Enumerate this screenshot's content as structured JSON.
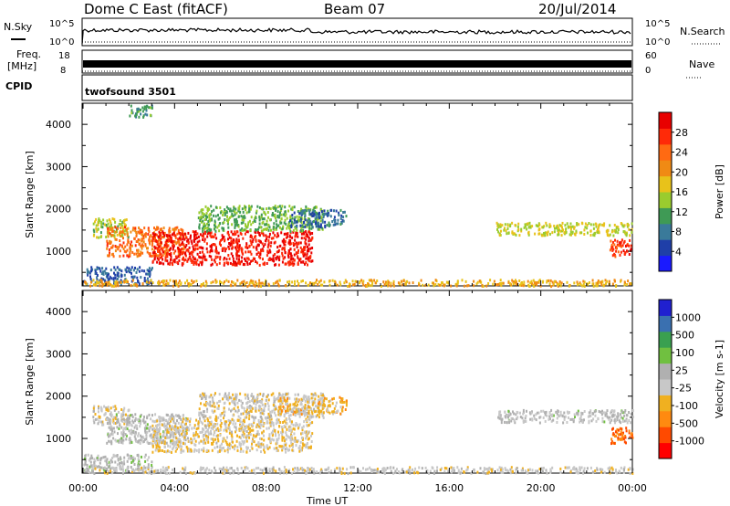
{
  "header": {
    "station": "Dome C East (fitACF)",
    "beam": "Beam 07",
    "date": "20/Jul/2014"
  },
  "strips": {
    "nsky_label": "N.Sky",
    "nsky_ticks": [
      "10^5",
      "10^0"
    ],
    "nsearch_label": "N.Search",
    "nsearch_ticks": [
      "10^5",
      "10^0"
    ],
    "freq_label_1": "Freq.",
    "freq_label_2": "[MHz]",
    "freq_ticks": [
      "18",
      "8"
    ],
    "nave_label": "Nave",
    "nave_ticks": [
      "60",
      "0"
    ],
    "cpid_label": "CPID",
    "cpid_value": "twofsound 3501"
  },
  "colors": {
    "power": [
      "#1a1aff",
      "#1f3fa8",
      "#3a7a9a",
      "#3f9a55",
      "#9acc2e",
      "#e8c21a",
      "#f08a14",
      "#ff6a12",
      "#ff2a08",
      "#e80000"
    ],
    "velocity": [
      "#ff0000",
      "#ff4a00",
      "#ff8a10",
      "#f0b020",
      "#c8c8c8",
      "#b0b0b0",
      "#70c040",
      "#3aa050",
      "#3a70b0",
      "#2020d0"
    ]
  },
  "chart_data": [
    {
      "type": "heatmap",
      "title": "",
      "xlabel": "Time UT",
      "ylabel": "Slant Range [km]",
      "x_ticks": [
        "00:00",
        "04:00",
        "08:00",
        "12:00",
        "16:00",
        "20:00",
        "00:00"
      ],
      "xlim_hours": [
        0,
        24
      ],
      "y_ticks": [
        1000,
        2000,
        3000,
        4000
      ],
      "ylim": [
        180,
        4500
      ],
      "colorbar": {
        "label": "Power [dB]",
        "ticks": [
          "4",
          "8",
          "12",
          "16",
          "20",
          "24",
          "28"
        ],
        "range": [
          0,
          30
        ]
      },
      "regions": [
        {
          "t": [
            0.4,
            2.0
          ],
          "range": [
            1350,
            1800
          ],
          "value": 14
        },
        {
          "t": [
            1.0,
            4.5
          ],
          "range": [
            900,
            1600
          ],
          "value": 22
        },
        {
          "t": [
            3.0,
            10.0
          ],
          "range": [
            700,
            1500
          ],
          "value": 27
        },
        {
          "t": [
            5.0,
            10.5
          ],
          "range": [
            1500,
            2100
          ],
          "value": 12
        },
        {
          "t": [
            9.0,
            11.5
          ],
          "range": [
            1600,
            2000
          ],
          "value": 7
        },
        {
          "t": [
            0.0,
            3.0
          ],
          "range": [
            250,
            650
          ],
          "value": 6
        },
        {
          "t": [
            18.0,
            24.0
          ],
          "range": [
            1400,
            1700
          ],
          "value": 15
        },
        {
          "t": [
            23.0,
            24.0
          ],
          "range": [
            900,
            1300
          ],
          "value": 26
        },
        {
          "t": [
            0.0,
            24.0
          ],
          "range": [
            200,
            350
          ],
          "value": 18
        },
        {
          "t": [
            2.0,
            3.0
          ],
          "range": [
            4200,
            4500
          ],
          "value": 10
        }
      ]
    },
    {
      "type": "heatmap",
      "title": "",
      "xlabel": "Time UT",
      "ylabel": "Slant Range [km]",
      "x_ticks": [
        "00:00",
        "04:00",
        "08:00",
        "12:00",
        "16:00",
        "20:00",
        "00:00"
      ],
      "xlim_hours": [
        0,
        24
      ],
      "y_ticks": [
        1000,
        2000,
        3000,
        4000
      ],
      "ylim": [
        180,
        4500
      ],
      "colorbar": {
        "label": "Velocity [m s-1]",
        "ticks": [
          "-1000",
          "-500",
          "-100",
          "-25",
          "25",
          "100",
          "500",
          "1000"
        ],
        "range": [
          -1200,
          1200
        ]
      },
      "regions": [
        {
          "t": [
            0.4,
            2.0
          ],
          "range": [
            1350,
            1800
          ],
          "value": -150
        },
        {
          "t": [
            1.0,
            4.5
          ],
          "range": [
            900,
            1600
          ],
          "value": 60
        },
        {
          "t": [
            3.0,
            10.0
          ],
          "range": [
            700,
            1500
          ],
          "value": -200
        },
        {
          "t": [
            5.0,
            10.5
          ],
          "range": [
            1500,
            2100
          ],
          "value": -120
        },
        {
          "t": [
            8.5,
            11.5
          ],
          "range": [
            1600,
            2000
          ],
          "value": -350
        },
        {
          "t": [
            0.0,
            3.0
          ],
          "range": [
            250,
            650
          ],
          "value": 80
        },
        {
          "t": [
            18.0,
            24.0
          ],
          "range": [
            1400,
            1700
          ],
          "value": 40
        },
        {
          "t": [
            23.0,
            24.0
          ],
          "range": [
            900,
            1300
          ],
          "value": -700
        },
        {
          "t": [
            0.0,
            24.0
          ],
          "range": [
            200,
            350
          ],
          "value": -100
        }
      ]
    }
  ]
}
